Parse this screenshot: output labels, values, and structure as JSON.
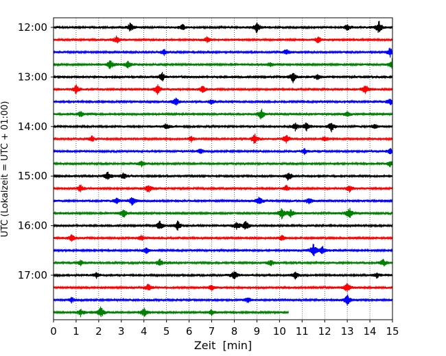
{
  "chart_data": {
    "type": "line",
    "title": "",
    "xlabel": "Zeit  [min]",
    "ylabel": "UTC (Lokalzeit = UTC + 01:00)",
    "xlim": [
      0,
      15
    ],
    "xticks": [
      0,
      1,
      2,
      3,
      4,
      5,
      6,
      7,
      8,
      9,
      10,
      11,
      12,
      13,
      14,
      15
    ],
    "xgrid": "dotted vertical gridlines at each minute",
    "y_tick_labels": [
      "12:00",
      "13:00",
      "14:00",
      "15:00",
      "16:00",
      "17:00"
    ],
    "trace_interval_minutes": 15,
    "trace_colors": [
      "#000000",
      "#ff0000",
      "#0000ff",
      "#008000"
    ],
    "traces": [
      {
        "start": "12:00",
        "end_min": 15,
        "events": [
          [
            3.4,
            0.5
          ],
          [
            5.7,
            0.35
          ],
          [
            9.0,
            0.6
          ],
          [
            13.0,
            0.4
          ],
          [
            14.4,
            0.7
          ]
        ]
      },
      {
        "start": "12:15",
        "end_min": 15,
        "events": [
          [
            2.8,
            0.4
          ],
          [
            6.8,
            0.3
          ],
          [
            11.7,
            0.35
          ]
        ]
      },
      {
        "start": "12:30",
        "end_min": 15,
        "events": [
          [
            4.9,
            0.3
          ],
          [
            10.3,
            0.3
          ],
          [
            14.9,
            0.5
          ]
        ]
      },
      {
        "start": "12:45",
        "end_min": 15,
        "events": [
          [
            2.5,
            0.5
          ],
          [
            3.3,
            0.4
          ],
          [
            9.6,
            0.3
          ],
          [
            15.0,
            0.7
          ]
        ]
      },
      {
        "start": "13:00",
        "end_min": 15,
        "events": [
          [
            4.8,
            0.5
          ],
          [
            10.6,
            0.6
          ],
          [
            11.7,
            0.3
          ]
        ]
      },
      {
        "start": "13:15",
        "end_min": 15,
        "events": [
          [
            1.0,
            0.5
          ],
          [
            4.6,
            0.6
          ],
          [
            6.6,
            0.4
          ],
          [
            13.8,
            0.6
          ]
        ]
      },
      {
        "start": "13:30",
        "end_min": 15,
        "events": [
          [
            5.4,
            0.5
          ],
          [
            7.0,
            0.3
          ],
          [
            14.9,
            0.4
          ]
        ]
      },
      {
        "start": "13:45",
        "end_min": 15,
        "events": [
          [
            1.2,
            0.3
          ],
          [
            9.2,
            0.6
          ],
          [
            13.0,
            0.3
          ]
        ]
      },
      {
        "start": "14:00",
        "end_min": 15,
        "events": [
          [
            5.0,
            0.35
          ],
          [
            10.7,
            0.4
          ],
          [
            11.2,
            0.5
          ],
          [
            12.3,
            0.5
          ],
          [
            14.2,
            0.3
          ]
        ]
      },
      {
        "start": "14:15",
        "end_min": 15,
        "events": [
          [
            1.7,
            0.3
          ],
          [
            6.1,
            0.3
          ],
          [
            8.9,
            0.6
          ],
          [
            10.3,
            0.5
          ],
          [
            12.0,
            0.3
          ]
        ]
      },
      {
        "start": "14:30",
        "end_min": 15,
        "events": [
          [
            6.5,
            0.3
          ],
          [
            11.1,
            0.3
          ],
          [
            14.9,
            0.3
          ]
        ]
      },
      {
        "start": "14:45",
        "end_min": 15,
        "events": [
          [
            3.9,
            0.3
          ],
          [
            14.9,
            0.3
          ]
        ]
      },
      {
        "start": "15:00",
        "end_min": 15,
        "events": [
          [
            2.4,
            0.5
          ],
          [
            3.1,
            0.35
          ],
          [
            10.4,
            0.5
          ]
        ]
      },
      {
        "start": "15:15",
        "end_min": 15,
        "events": [
          [
            1.2,
            0.4
          ],
          [
            4.2,
            0.5
          ],
          [
            10.3,
            0.3
          ],
          [
            13.1,
            0.4
          ]
        ]
      },
      {
        "start": "15:30",
        "end_min": 15,
        "events": [
          [
            2.8,
            0.35
          ],
          [
            3.5,
            0.5
          ],
          [
            9.1,
            0.5
          ],
          [
            11.3,
            0.4
          ]
        ]
      },
      {
        "start": "15:45",
        "end_min": 15,
        "events": [
          [
            3.1,
            0.5
          ],
          [
            10.1,
            0.6
          ],
          [
            10.5,
            0.4
          ],
          [
            13.1,
            0.6
          ]
        ]
      },
      {
        "start": "16:00",
        "end_min": 15,
        "events": [
          [
            4.7,
            0.5
          ],
          [
            5.5,
            0.5
          ],
          [
            8.1,
            0.4
          ],
          [
            8.5,
            0.5
          ]
        ]
      },
      {
        "start": "16:15",
        "end_min": 15,
        "events": [
          [
            0.8,
            0.4
          ],
          [
            3.9,
            0.3
          ],
          [
            10.1,
            0.3
          ]
        ]
      },
      {
        "start": "16:30",
        "end_min": 15,
        "events": [
          [
            4.1,
            0.3
          ],
          [
            11.5,
            0.7
          ],
          [
            11.9,
            0.4
          ]
        ]
      },
      {
        "start": "16:45",
        "end_min": 15,
        "events": [
          [
            1.2,
            0.3
          ],
          [
            4.7,
            0.4
          ],
          [
            9.6,
            0.35
          ],
          [
            14.6,
            0.4
          ]
        ]
      },
      {
        "start": "17:00",
        "end_min": 15,
        "events": [
          [
            1.9,
            0.3
          ],
          [
            8.0,
            0.6
          ],
          [
            10.7,
            0.4
          ],
          [
            14.3,
            0.3
          ]
        ]
      },
      {
        "start": "17:15",
        "end_min": 15,
        "events": [
          [
            4.2,
            0.4
          ],
          [
            7.0,
            0.3
          ],
          [
            13.0,
            0.5
          ]
        ]
      },
      {
        "start": "17:30",
        "end_min": 15,
        "events": [
          [
            0.8,
            0.3
          ],
          [
            8.6,
            0.3
          ],
          [
            13.0,
            0.6
          ]
        ]
      },
      {
        "start": "17:45",
        "end_min": 10.4,
        "events": [
          [
            1.2,
            0.4
          ],
          [
            2.1,
            0.6
          ],
          [
            4.0,
            0.5
          ],
          [
            7.0,
            0.3
          ]
        ]
      }
    ]
  }
}
